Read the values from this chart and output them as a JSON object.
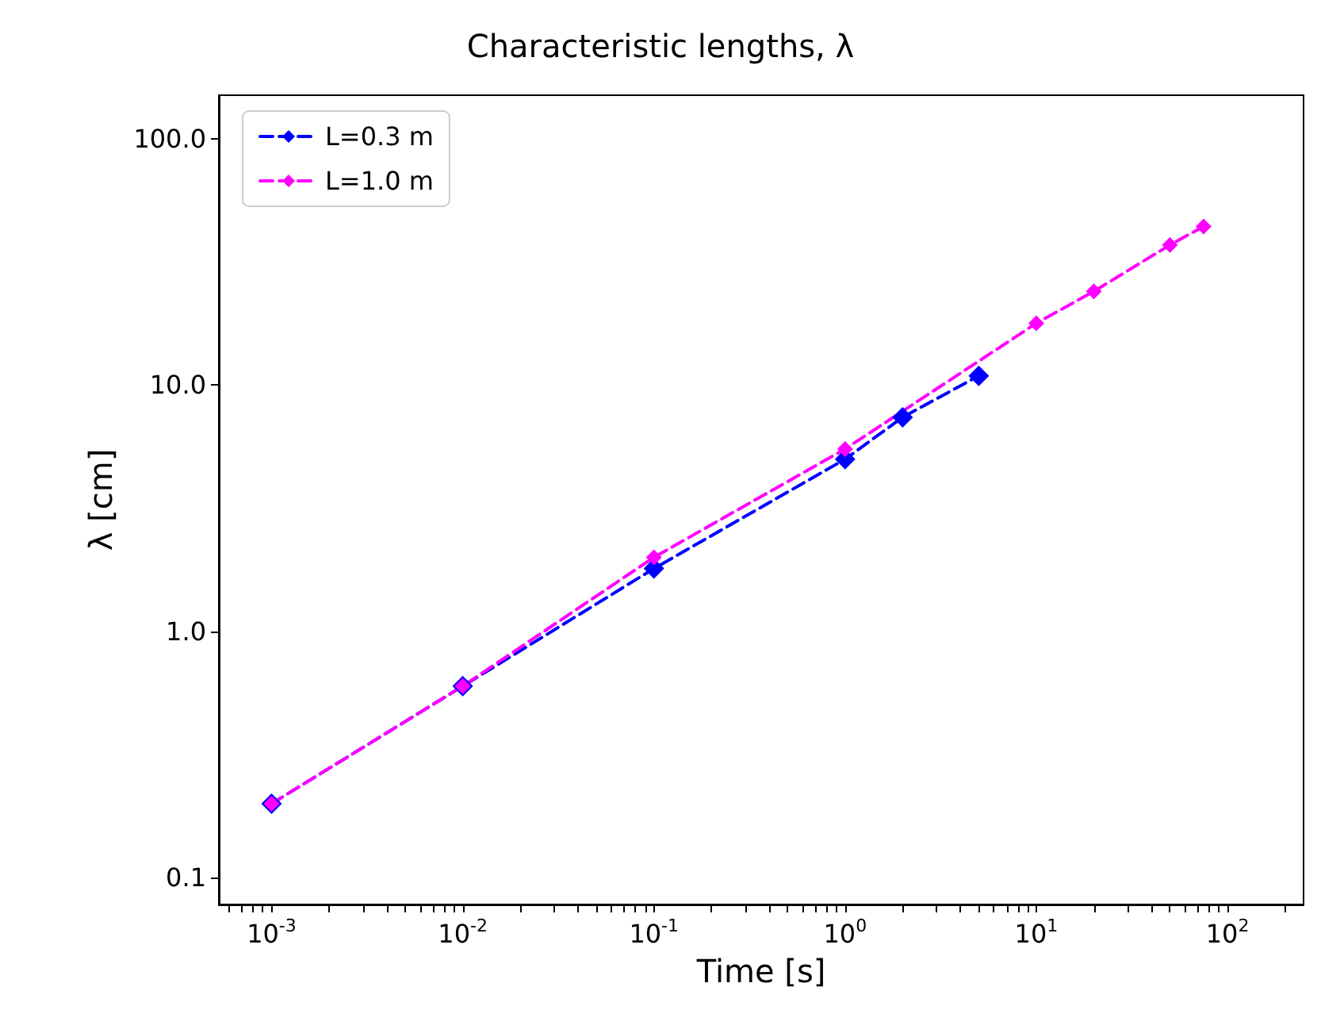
{
  "chart_data": {
    "type": "line",
    "title": "Characteristic lengths, λ",
    "xlabel": "Time [s]",
    "ylabel": "λ [cm]",
    "log": "xy",
    "grid": false,
    "legend": "top left",
    "marker": "diamond",
    "line_style": "dashed",
    "xlim": [
      0.00053,
      250
    ],
    "ylim": [
      0.078,
      150
    ],
    "xticks": [
      {
        "value": 0.0006,
        "label": null
      },
      {
        "value": 0.0007,
        "label": null
      },
      {
        "value": 0.0008,
        "label": null
      },
      {
        "value": 0.0009,
        "label": null
      },
      {
        "value": 0.001,
        "label": "10$^{-3}$"
      },
      {
        "value": 0.002,
        "label": null
      },
      {
        "value": 0.003,
        "label": null
      },
      {
        "value": 0.004,
        "label": null
      },
      {
        "value": 0.005,
        "label": null
      },
      {
        "value": 0.006,
        "label": null
      },
      {
        "value": 0.007,
        "label": null
      },
      {
        "value": 0.008,
        "label": null
      },
      {
        "value": 0.009,
        "label": null
      },
      {
        "value": 0.01,
        "label": "10$^{-2}$"
      },
      {
        "value": 0.02,
        "label": null
      },
      {
        "value": 0.03,
        "label": null
      },
      {
        "value": 0.04,
        "label": null
      },
      {
        "value": 0.05,
        "label": null
      },
      {
        "value": 0.06,
        "label": null
      },
      {
        "value": 0.07,
        "label": null
      },
      {
        "value": 0.08,
        "label": null
      },
      {
        "value": 0.09,
        "label": null
      },
      {
        "value": 0.1,
        "label": "10$^{-1}$"
      },
      {
        "value": 0.2,
        "label": null
      },
      {
        "value": 0.3,
        "label": null
      },
      {
        "value": 0.4,
        "label": null
      },
      {
        "value": 0.5,
        "label": null
      },
      {
        "value": 0.6,
        "label": null
      },
      {
        "value": 0.7,
        "label": null
      },
      {
        "value": 0.8,
        "label": null
      },
      {
        "value": 0.9,
        "label": null
      },
      {
        "value": 1,
        "label": "10$^{0}$"
      },
      {
        "value": 2,
        "label": null
      },
      {
        "value": 3,
        "label": null
      },
      {
        "value": 4,
        "label": null
      },
      {
        "value": 5,
        "label": null
      },
      {
        "value": 6,
        "label": null
      },
      {
        "value": 7,
        "label": null
      },
      {
        "value": 8,
        "label": null
      },
      {
        "value": 9,
        "label": null
      },
      {
        "value": 10,
        "label": "10$^{1}$"
      },
      {
        "value": 20,
        "label": null
      },
      {
        "value": 30,
        "label": null
      },
      {
        "value": 40,
        "label": null
      },
      {
        "value": 50,
        "label": null
      },
      {
        "value": 60,
        "label": null
      },
      {
        "value": 70,
        "label": null
      },
      {
        "value": 80,
        "label": null
      },
      {
        "value": 90,
        "label": null
      },
      {
        "value": 100,
        "label": "10$^{2}$"
      },
      {
        "value": 200,
        "label": null
      }
    ],
    "yticks": [
      {
        "value": 0.1,
        "label": "0.1"
      },
      {
        "value": 1,
        "label": "1.0"
      },
      {
        "value": 10,
        "label": "10.0"
      },
      {
        "value": 100,
        "label": "100.0"
      }
    ],
    "series": [
      {
        "name": "L=0.3 m",
        "color": "#0000ff",
        "x": [
          0.001,
          0.01,
          0.1,
          1,
          2,
          5
        ],
        "values": [
          0.2,
          0.6,
          1.8,
          5.0,
          7.4,
          10.9
        ]
      },
      {
        "name": "L=1.0 m",
        "color": "#ff00ff",
        "x": [
          0.001,
          0.01,
          0.1,
          1,
          10,
          20,
          50,
          75
        ],
        "values": [
          0.2,
          0.6,
          2.0,
          5.5,
          17.8,
          24,
          37,
          44
        ]
      }
    ]
  }
}
